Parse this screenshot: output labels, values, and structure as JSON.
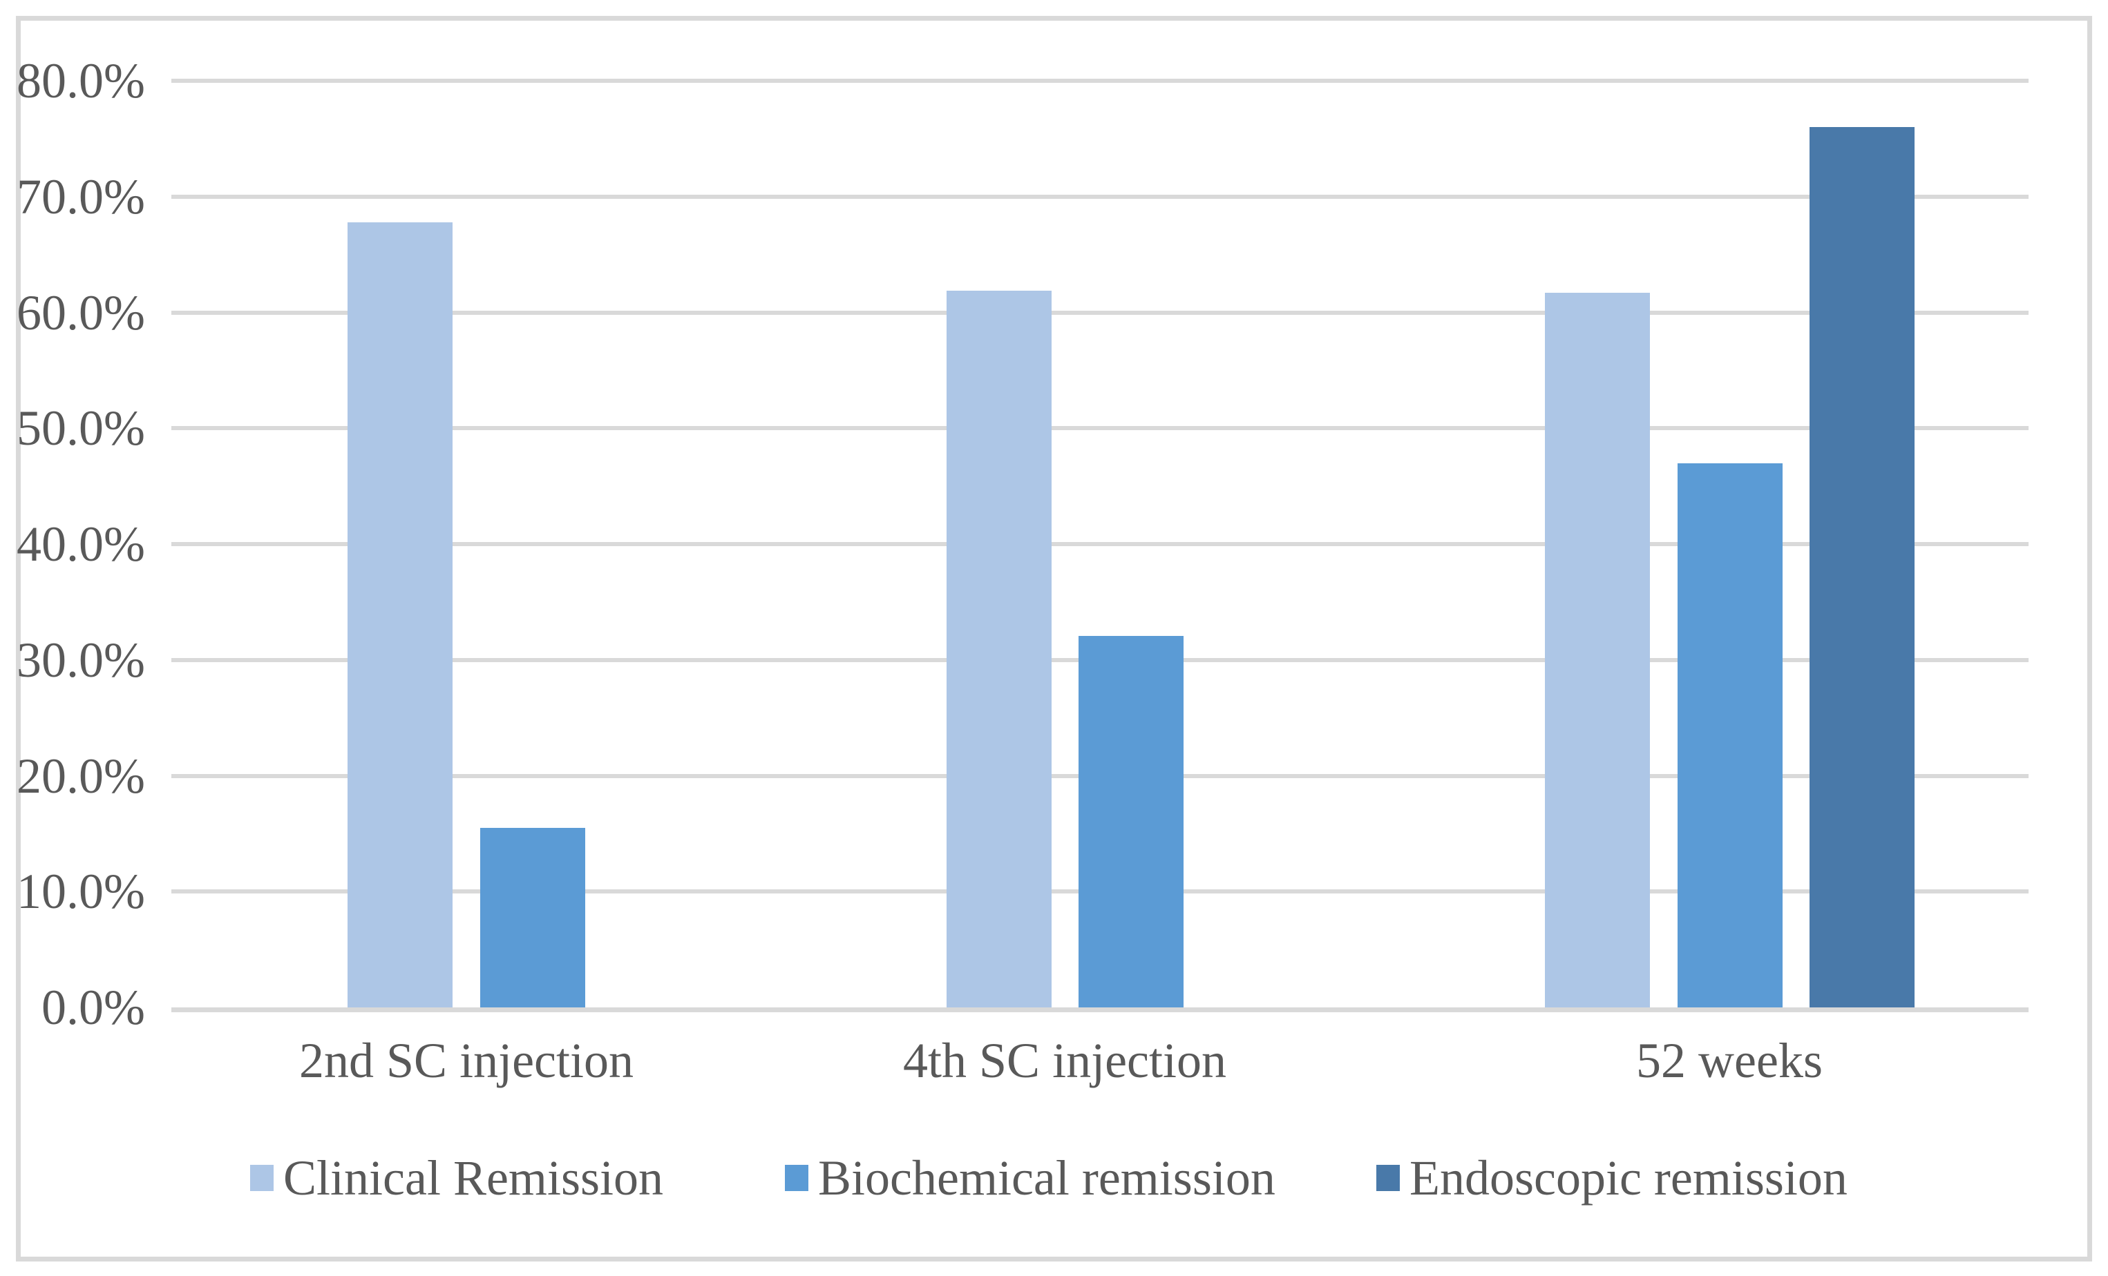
{
  "chart": {
    "background": "#FFFFFF",
    "border_color": "#D9D9D9",
    "gridline_color": "#D9D9D9",
    "text_color": "#595959"
  },
  "chart_data": {
    "type": "bar",
    "title": "",
    "xlabel": "",
    "ylabel": "",
    "categories": [
      "2nd SC injection",
      "4th SC injection",
      "52 weeks"
    ],
    "series": [
      {
        "name": "Clinical Remission",
        "color": "#ADC6E6",
        "values": [
          67.8,
          61.9,
          61.7
        ]
      },
      {
        "name": "Biochemical remission",
        "color": "#5B9BD5",
        "values": [
          15.5,
          32.1,
          47.0
        ]
      },
      {
        "name": "Endoscopic remission",
        "color": "#4979A9",
        "values": [
          null,
          null,
          76.0
        ]
      }
    ],
    "ylim": [
      0,
      80
    ],
    "ytick_step": 10,
    "ytick_labels": [
      "0.0%",
      "10.0%",
      "20.0%",
      "30.0%",
      "40.0%",
      "50.0%",
      "60.0%",
      "70.0%",
      "80.0%"
    ],
    "grid": true,
    "legend_position": "bottom"
  }
}
